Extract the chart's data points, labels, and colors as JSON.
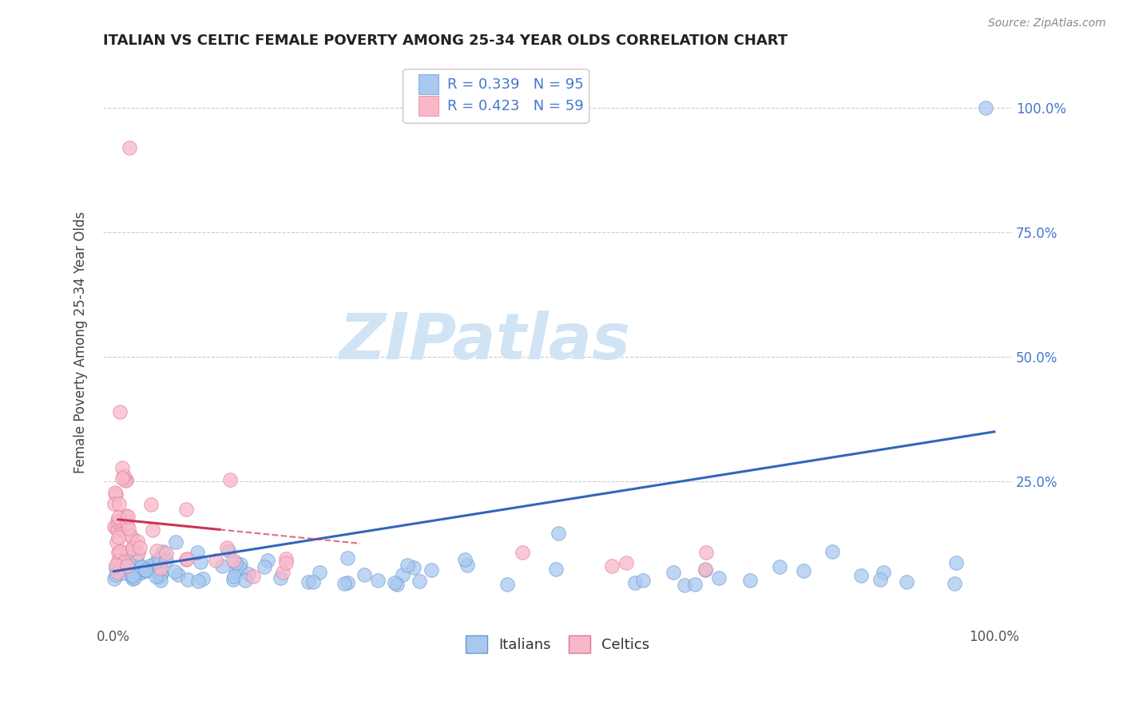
{
  "title": "ITALIAN VS CELTIC FEMALE POVERTY AMONG 25-34 YEAR OLDS CORRELATION CHART",
  "source": "Source: ZipAtlas.com",
  "ylabel": "Female Poverty Among 25-34 Year Olds",
  "italian_color": "#a8c8f0",
  "italian_edge": "#6699cc",
  "celtic_color": "#f8b8c8",
  "celtic_edge": "#dd7799",
  "line_italian": "#3366bb",
  "line_celtic": "#cc3355",
  "watermark_color": "#d0e4f5",
  "background_color": "#ffffff",
  "grid_color": "#cccccc",
  "legend_text_color": "#4477cc"
}
